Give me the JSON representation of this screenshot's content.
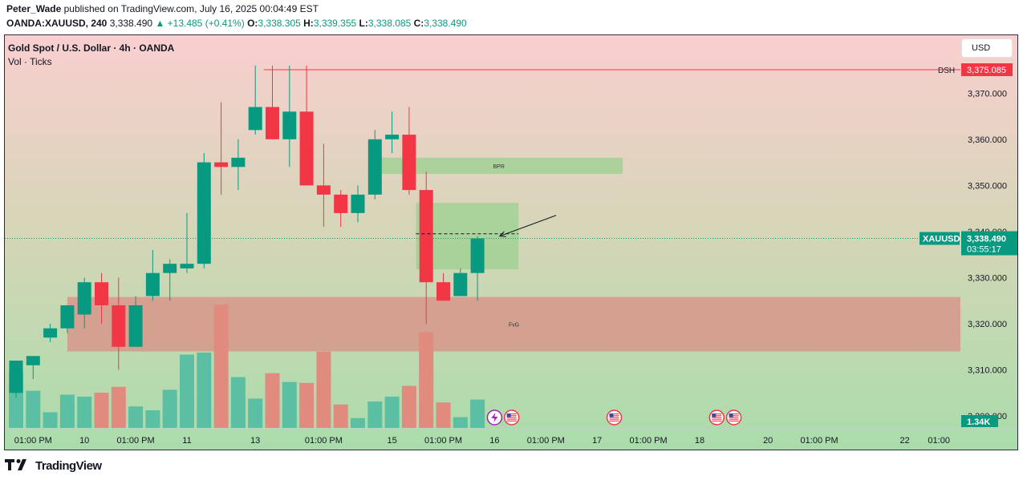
{
  "header": {
    "author": "Peter_Wade",
    "published_text": "published on TradingView.com, July 16, 2025 00:04:49 EST",
    "symbol": "OANDA:XAUUSD, 240",
    "last": "3,338.490",
    "change": "▲ +13.485 (+0.41%)",
    "o_label": "O:",
    "o": "3,338.305",
    "h_label": "H:",
    "h": "3,339.355",
    "l_label": "L:",
    "l": "3,338.085",
    "c_label": "C:",
    "c": "3,338.490"
  },
  "legend": {
    "title": "Gold Spot / U.S. Dollar · 4h · OANDA",
    "volume": "Vol · Ticks"
  },
  "currency_button": "USD",
  "footer": {
    "brand": "TradingView"
  },
  "colors": {
    "up": "#089981",
    "down": "#f23645",
    "vol_up": "#5bbfa3",
    "vol_down": "#e08b7e",
    "zone_green": "#a7d5a0",
    "zone_red": "#d9978c",
    "dsh": "#f23645"
  },
  "chart_data": {
    "type": "candlestick",
    "symbol_label": "XAUUSD",
    "last_price": "3,338.490",
    "countdown": "03:55:17",
    "dsh_label": "DSH",
    "dsh_price": "3,375.085",
    "dsh_value": 3375.085,
    "volume_label": "1.34K",
    "ylim": [
      3298,
      3383
    ],
    "y_ticks": [
      {
        "v": 3370,
        "t": "3,370.000"
      },
      {
        "v": 3360,
        "t": "3,360.000"
      },
      {
        "v": 3350,
        "t": "3,350.000"
      },
      {
        "v": 3340,
        "t": "3,340.000"
      },
      {
        "v": 3330,
        "t": "3,330.000"
      },
      {
        "v": 3320,
        "t": "3,320.000"
      },
      {
        "v": 3310,
        "t": "3,310.000"
      },
      {
        "v": 3300,
        "t": "3,300.000"
      }
    ],
    "x_ticks": [
      {
        "i": 1,
        "t": "01:00 PM"
      },
      {
        "i": 4,
        "t": "10"
      },
      {
        "i": 7,
        "t": "01:00 PM"
      },
      {
        "i": 10,
        "t": "11"
      },
      {
        "i": 14,
        "t": "13"
      },
      {
        "i": 18,
        "t": "01:00 PM"
      },
      {
        "i": 22,
        "t": "15"
      },
      {
        "i": 25,
        "t": "01:00 PM"
      },
      {
        "i": 28,
        "t": "16"
      },
      {
        "i": 31,
        "t": "01:00 PM"
      },
      {
        "i": 34,
        "t": "17"
      },
      {
        "i": 37,
        "t": "01:00 PM"
      },
      {
        "i": 40,
        "t": "18"
      },
      {
        "i": 44,
        "t": "20"
      },
      {
        "i": 47,
        "t": "01:00 PM"
      },
      {
        "i": 52,
        "t": "22"
      },
      {
        "i": 54,
        "t": "01:00"
      }
    ],
    "candles": [
      {
        "o": 3305,
        "h": 3312,
        "l": 3304,
        "c": 3312,
        "v": 0.58
      },
      {
        "o": 3311,
        "h": 3313,
        "l": 3308,
        "c": 3313,
        "v": 0.38
      },
      {
        "o": 3317,
        "h": 3320,
        "l": 3316,
        "c": 3319,
        "v": 0.16
      },
      {
        "o": 3319,
        "h": 3324,
        "l": 3318,
        "c": 3324,
        "v": 0.34
      },
      {
        "o": 3322,
        "h": 3330,
        "l": 3319,
        "c": 3329,
        "v": 0.32
      },
      {
        "o": 3329,
        "h": 3331,
        "l": 3320,
        "c": 3324,
        "v": 0.36
      },
      {
        "o": 3324,
        "h": 3330,
        "l": 3310,
        "c": 3315,
        "v": 0.42
      },
      {
        "o": 3315,
        "h": 3326,
        "l": 3315,
        "c": 3324,
        "v": 0.22
      },
      {
        "o": 3326,
        "h": 3336,
        "l": 3325,
        "c": 3331,
        "v": 0.18
      },
      {
        "o": 3331,
        "h": 3334,
        "l": 3325,
        "c": 3333,
        "v": 0.39
      },
      {
        "o": 3332,
        "h": 3344,
        "l": 3331,
        "c": 3333,
        "v": 0.75
      },
      {
        "o": 3333,
        "h": 3357,
        "l": 3332,
        "c": 3355,
        "v": 0.77
      },
      {
        "o": 3355,
        "h": 3368,
        "l": 3348,
        "c": 3354,
        "v": 1.26
      },
      {
        "o": 3354,
        "h": 3360,
        "l": 3349,
        "c": 3356,
        "v": 0.52
      },
      {
        "o": 3362,
        "h": 3376,
        "l": 3361,
        "c": 3367,
        "v": 0.3
      },
      {
        "o": 3367,
        "h": 3376,
        "l": 3360,
        "c": 3360,
        "v": 0.56
      },
      {
        "o": 3360,
        "h": 3376,
        "l": 3354,
        "c": 3366,
        "v": 0.47
      },
      {
        "o": 3366,
        "h": 3376,
        "l": 3350,
        "c": 3350,
        "v": 0.46
      },
      {
        "o": 3350,
        "h": 3359,
        "l": 3341,
        "c": 3348,
        "v": 0.78
      },
      {
        "o": 3348,
        "h": 3349,
        "l": 3341,
        "c": 3344,
        "v": 0.24
      },
      {
        "o": 3344,
        "h": 3350,
        "l": 3342,
        "c": 3348,
        "v": 0.1
      },
      {
        "o": 3348,
        "h": 3362,
        "l": 3347,
        "c": 3360,
        "v": 0.27
      },
      {
        "o": 3360,
        "h": 3366,
        "l": 3357,
        "c": 3361,
        "v": 0.32
      },
      {
        "o": 3361,
        "h": 3367,
        "l": 3348,
        "c": 3349,
        "v": 0.43
      },
      {
        "o": 3349,
        "h": 3353,
        "l": 3320,
        "c": 3329,
        "v": 0.98
      },
      {
        "o": 3329,
        "h": 3331,
        "l": 3325,
        "c": 3325,
        "v": 0.26
      },
      {
        "o": 3326,
        "h": 3332,
        "l": 3326,
        "c": 3331,
        "v": 0.11
      },
      {
        "o": 3331,
        "h": 3339,
        "l": 3325,
        "c": 3338.5,
        "v": 0.29
      }
    ],
    "zones": [
      {
        "label": "BPR",
        "i0": 21,
        "i1": 35.5,
        "p0": 3356,
        "p1": 3352.5,
        "color": "#9fd193"
      },
      {
        "label": "FvG",
        "i0": 3,
        "i1": 56.2,
        "p0": 3325.8,
        "p1": 3314,
        "color": "#d7968a"
      },
      {
        "label": "",
        "i0": 23.4,
        "i1": 29.4,
        "p0": 3346.2,
        "p1": 3331.8,
        "color": "#9fd193"
      }
    ],
    "dashed_level": {
      "i0": 23.4,
      "i1": 29.4,
      "p": 3339.5
    },
    "arrow": {
      "i0": 31.6,
      "p0": 3343.5,
      "i1": 28.3,
      "p1": 3339.0
    },
    "events": [
      {
        "i": 28,
        "kind": "lightning"
      },
      {
        "i": 29,
        "kind": "us-flag"
      },
      {
        "i": 35,
        "kind": "us-flag"
      },
      {
        "i": 41,
        "kind": "us-flag"
      },
      {
        "i": 42,
        "kind": "us-flag"
      }
    ]
  }
}
